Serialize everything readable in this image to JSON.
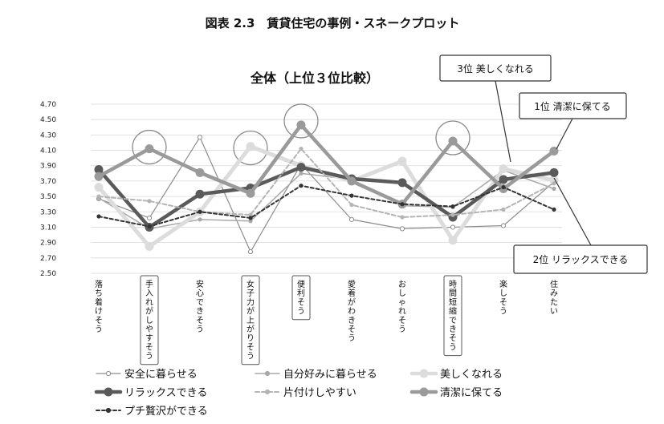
{
  "figure_title": "図表 2.3　賃貸住宅の事例・スネークプロット",
  "chart_data": {
    "type": "line",
    "title": "全体（上位３位比較）",
    "ylim": [
      2.5,
      4.7
    ],
    "yticks": [
      "4.70",
      "4.50",
      "4.30",
      "4.10",
      "3.90",
      "3.70",
      "3.50",
      "3.30",
      "3.10",
      "2.90",
      "2.70",
      "2.50"
    ],
    "ytick_values": [
      4.7,
      4.5,
      4.3,
      4.1,
      3.9,
      3.7,
      3.5,
      3.3,
      3.1,
      2.9,
      2.7,
      2.5
    ],
    "grid": true,
    "legend_position": "bottom",
    "categories": [
      "落ち着けそう",
      "手入れがしやすそう",
      "安心できそう",
      "女子力が上がりそう",
      "便利そう",
      "愛着がわきそう",
      "おしゃれそう",
      "時間短縮できそう",
      "楽しそう",
      "住みたい"
    ],
    "boxed_categories": [
      1,
      3,
      4,
      7
    ],
    "highlight_circles": [
      {
        "category": 1,
        "value": 4.1
      },
      {
        "category": 3,
        "value": 4.09
      },
      {
        "category": 4,
        "value": 4.44
      },
      {
        "category": 7,
        "value": 4.22
      }
    ],
    "series": [
      {
        "name": "安全に暮らせる",
        "color": "#8c8c8c",
        "stroke_width": 1.2,
        "dash": "",
        "marker": "open",
        "values": [
          3.47,
          3.22,
          4.27,
          2.78,
          3.92,
          3.2,
          3.08,
          3.1,
          3.12,
          3.69
        ]
      },
      {
        "name": "自分好みに暮らせる",
        "color": "#a8a8a8",
        "stroke_width": 1.5,
        "dash": "",
        "marker": "dot",
        "values": [
          3.48,
          3.08,
          3.2,
          3.18,
          3.8,
          3.72,
          3.38,
          3.36,
          3.84,
          3.6
        ]
      },
      {
        "name": "美しくなれる",
        "color": "#dcdcdc",
        "stroke_width": 5,
        "dash": "",
        "marker": "dot",
        "values": [
          3.62,
          2.85,
          3.3,
          4.15,
          3.9,
          3.7,
          3.96,
          2.93,
          3.86,
          3.71
        ]
      },
      {
        "name": "リラックスできる",
        "color": "#5a5a5a",
        "stroke_width": 4.5,
        "dash": "",
        "marker": "dot",
        "values": [
          3.85,
          3.1,
          3.53,
          3.61,
          3.88,
          3.73,
          3.68,
          3.23,
          3.72,
          3.81
        ]
      },
      {
        "name": "片付けしやすい",
        "color": "#b4b4b4",
        "stroke_width": 2,
        "dash": "5,3",
        "marker": "dot",
        "values": [
          3.5,
          3.44,
          3.3,
          3.26,
          4.12,
          3.39,
          3.23,
          3.26,
          3.33,
          3.67
        ]
      },
      {
        "name": "清潔に保てる",
        "color": "#9a9a9a",
        "stroke_width": 4.5,
        "dash": "",
        "marker": "dot",
        "values": [
          3.76,
          4.12,
          3.81,
          3.54,
          4.43,
          3.7,
          3.4,
          4.22,
          3.6,
          4.09
        ]
      },
      {
        "name": "プチ贅沢ができる",
        "color": "#333333",
        "stroke_width": 2,
        "dash": "4,3",
        "marker": "dot",
        "values": [
          3.24,
          3.11,
          3.3,
          3.22,
          3.64,
          3.51,
          3.4,
          3.37,
          3.62,
          3.33
        ]
      }
    ],
    "callouts": [
      {
        "text": "3位 美しくなれる"
      },
      {
        "text": "1位 清潔に保てる"
      },
      {
        "text": "2位 リラックスできる"
      }
    ]
  }
}
